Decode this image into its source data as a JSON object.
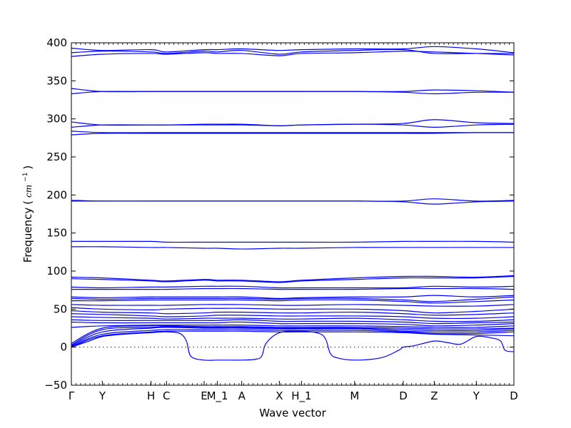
{
  "chart_data": {
    "type": "line",
    "xlabel": "Wave vector",
    "ylabel": "Frequency",
    "ylabel_unit": "cm",
    "ylabel_unit_exp": "−1",
    "ylim": [
      -50,
      400
    ],
    "yticks": [
      -50,
      0,
      50,
      100,
      150,
      200,
      250,
      300,
      350,
      400
    ],
    "ytick_labels": [
      "−50",
      "0",
      "50",
      "100",
      "150",
      "200",
      "250",
      "300",
      "350",
      "400"
    ],
    "x_range": [
      0,
      1
    ],
    "high_symmetry_points": [
      {
        "label": "Γ",
        "x": 0.0
      },
      {
        "label": "Y",
        "x": 0.07
      },
      {
        "label": "H",
        "x": 0.18
      },
      {
        "label": "C",
        "x": 0.215
      },
      {
        "label": "E",
        "x": 0.3
      },
      {
        "label": "M_1",
        "x": 0.33
      },
      {
        "label": "A",
        "x": 0.385
      },
      {
        "label": "X",
        "x": 0.47
      },
      {
        "label": "H_1",
        "x": 0.52
      },
      {
        "label": "M",
        "x": 0.64
      },
      {
        "label": "D",
        "x": 0.75
      },
      {
        "label": "Z",
        "x": 0.82
      },
      {
        "label": "Y",
        "x": 0.915
      },
      {
        "label": "D",
        "x": 1.0
      }
    ],
    "zero_reference_line": 0,
    "line_color": "#0000ff",
    "series": [
      {
        "x": [
          0,
          0.07,
          0.18,
          0.215,
          0.3,
          0.33,
          0.385,
          0.47,
          0.52,
          0.64,
          0.75,
          0.82,
          0.915,
          1
        ],
        "y": [
          387,
          389,
          388,
          386,
          389,
          388,
          390,
          385,
          388,
          390,
          391,
          386,
          386,
          386
        ]
      },
      {
        "x": [
          0,
          0.07,
          0.18,
          0.215,
          0.3,
          0.33,
          0.385,
          0.47,
          0.52,
          0.64,
          0.75,
          0.82,
          0.915,
          1
        ],
        "y": [
          393,
          390,
          391,
          388,
          391,
          391,
          392,
          390,
          391,
          392,
          392,
          395,
          392,
          387
        ]
      },
      {
        "x": [
          0,
          0.07,
          0.18,
          0.215,
          0.3,
          0.33,
          0.385,
          0.47,
          0.52,
          0.64,
          0.75,
          0.82,
          0.915,
          1
        ],
        "y": [
          382,
          385,
          386,
          385,
          387,
          386,
          386,
          383,
          386,
          387,
          389,
          388,
          386,
          384
        ]
      },
      {
        "x": [
          0,
          0.07,
          0.18,
          0.215,
          0.3,
          0.33,
          0.385,
          0.47,
          0.52,
          0.64,
          0.75,
          0.82,
          0.915,
          1
        ],
        "y": [
          340,
          336,
          336,
          336,
          336,
          336,
          336,
          336,
          336,
          336,
          336,
          338,
          337,
          335
        ]
      },
      {
        "x": [
          0,
          0.07,
          0.18,
          0.215,
          0.3,
          0.33,
          0.385,
          0.47,
          0.52,
          0.64,
          0.75,
          0.82,
          0.915,
          1
        ],
        "y": [
          333,
          336,
          336,
          336,
          336,
          336,
          336,
          336,
          336,
          336,
          335,
          333,
          335,
          335
        ]
      },
      {
        "x": [
          0,
          0.07,
          0.18,
          0.215,
          0.3,
          0.33,
          0.385,
          0.47,
          0.52,
          0.64,
          0.75,
          0.82,
          0.915,
          1
        ],
        "y": [
          296,
          292,
          292,
          292,
          293,
          293,
          293,
          291,
          292,
          293,
          294,
          299,
          295,
          294
        ]
      },
      {
        "x": [
          0,
          0.07,
          0.18,
          0.215,
          0.3,
          0.33,
          0.385,
          0.47,
          0.52,
          0.64,
          0.75,
          0.82,
          0.915,
          1
        ],
        "y": [
          289,
          292,
          292,
          292,
          292,
          292,
          292,
          291,
          292,
          293,
          292,
          289,
          292,
          293
        ]
      },
      {
        "x": [
          0,
          0.07,
          0.18,
          0.215,
          0.3,
          0.33,
          0.385,
          0.47,
          0.52,
          0.64,
          0.75,
          0.82,
          0.915,
          1
        ],
        "y": [
          284,
          282,
          282,
          282,
          282,
          282,
          282,
          282,
          282,
          282,
          282,
          282,
          282,
          282
        ]
      },
      {
        "x": [
          0,
          0.07,
          0.18,
          0.215,
          0.3,
          0.33,
          0.385,
          0.47,
          0.52,
          0.64,
          0.75,
          0.82,
          0.915,
          1
        ],
        "y": [
          279,
          281,
          281,
          281,
          281,
          281,
          281,
          281,
          281,
          281,
          281,
          281,
          282,
          282
        ]
      },
      {
        "x": [
          0,
          0.07,
          0.18,
          0.215,
          0.3,
          0.33,
          0.385,
          0.47,
          0.52,
          0.64,
          0.75,
          0.82,
          0.915,
          1
        ],
        "y": [
          193,
          192,
          192,
          192,
          192,
          192,
          192,
          192,
          192,
          192,
          192,
          195,
          192,
          193
        ]
      },
      {
        "x": [
          0,
          0.07,
          0.18,
          0.215,
          0.3,
          0.33,
          0.385,
          0.47,
          0.52,
          0.64,
          0.75,
          0.82,
          0.915,
          1
        ],
        "y": [
          192,
          192,
          192,
          192,
          192,
          192,
          192,
          192,
          192,
          192,
          191,
          188,
          191,
          192
        ]
      },
      {
        "x": [
          0,
          0.07,
          0.18,
          0.215,
          0.3,
          0.33,
          0.385,
          0.47,
          0.52,
          0.64,
          0.75,
          0.82,
          0.915,
          1
        ],
        "y": [
          139,
          139,
          139,
          138,
          138,
          138,
          138,
          138,
          138,
          138,
          139,
          139,
          139,
          138
        ]
      },
      {
        "x": [
          0,
          0.07,
          0.18,
          0.215,
          0.3,
          0.33,
          0.385,
          0.47,
          0.52,
          0.64,
          0.75,
          0.82,
          0.915,
          1
        ],
        "y": [
          132,
          132,
          131,
          131,
          130,
          130,
          129,
          130,
          130,
          131,
          131,
          131,
          131,
          131
        ]
      },
      {
        "x": [
          0,
          0.07,
          0.18,
          0.215,
          0.3,
          0.33,
          0.385,
          0.47,
          0.52,
          0.64,
          0.75,
          0.82,
          0.915,
          1
        ],
        "y": [
          92,
          91,
          88,
          87,
          89,
          88,
          88,
          86,
          88,
          91,
          93,
          93,
          92,
          94
        ]
      },
      {
        "x": [
          0,
          0.07,
          0.18,
          0.215,
          0.3,
          0.33,
          0.385,
          0.47,
          0.52,
          0.64,
          0.75,
          0.82,
          0.915,
          1
        ],
        "y": [
          90,
          89,
          87,
          86,
          88,
          87,
          87,
          85,
          87,
          89,
          91,
          91,
          91,
          93
        ]
      },
      {
        "x": [
          0,
          0.07,
          0.18,
          0.215,
          0.3,
          0.33,
          0.385,
          0.47,
          0.52,
          0.64,
          0.75,
          0.82,
          0.915,
          1
        ],
        "y": [
          79,
          78,
          79,
          79,
          80,
          80,
          80,
          78,
          78,
          78,
          78,
          80,
          79,
          80
        ]
      },
      {
        "x": [
          0,
          0.07,
          0.18,
          0.215,
          0.3,
          0.33,
          0.385,
          0.47,
          0.52,
          0.64,
          0.75,
          0.82,
          0.915,
          1
        ],
        "y": [
          76,
          76,
          76,
          76,
          77,
          77,
          77,
          76,
          76,
          76,
          77,
          77,
          77,
          76
        ]
      },
      {
        "x": [
          0,
          0.07,
          0.18,
          0.215,
          0.3,
          0.33,
          0.385,
          0.47,
          0.52,
          0.64,
          0.75,
          0.82,
          0.915,
          1
        ],
        "y": [
          66,
          65,
          66,
          66,
          66,
          66,
          66,
          64,
          65,
          66,
          66,
          68,
          66,
          68
        ]
      },
      {
        "x": [
          0,
          0.07,
          0.18,
          0.215,
          0.3,
          0.33,
          0.385,
          0.47,
          0.52,
          0.64,
          0.75,
          0.82,
          0.915,
          1
        ],
        "y": [
          64,
          63,
          64,
          64,
          64,
          64,
          64,
          63,
          64,
          64,
          62,
          60,
          63,
          66
        ]
      },
      {
        "x": [
          0,
          0.07,
          0.18,
          0.215,
          0.3,
          0.33,
          0.385,
          0.47,
          0.52,
          0.64,
          0.75,
          0.82,
          0.915,
          1
        ],
        "y": [
          61,
          61,
          62,
          62,
          62,
          62,
          62,
          61,
          62,
          62,
          60,
          58,
          60,
          62
        ]
      },
      {
        "x": [
          0,
          0.07,
          0.18,
          0.215,
          0.3,
          0.33,
          0.385,
          0.47,
          0.52,
          0.64,
          0.75,
          0.82,
          0.915,
          1
        ],
        "y": [
          56,
          55,
          55,
          55,
          56,
          56,
          56,
          55,
          55,
          56,
          55,
          54,
          54,
          56
        ]
      },
      {
        "x": [
          0,
          0.07,
          0.18,
          0.215,
          0.3,
          0.33,
          0.385,
          0.47,
          0.52,
          0.64,
          0.75,
          0.82,
          0.915,
          1
        ],
        "y": [
          52,
          50,
          49,
          50,
          51,
          51,
          51,
          50,
          50,
          50,
          48,
          45,
          47,
          50
        ]
      },
      {
        "x": [
          0,
          0.07,
          0.18,
          0.215,
          0.3,
          0.33,
          0.385,
          0.47,
          0.52,
          0.64,
          0.75,
          0.82,
          0.915,
          1
        ],
        "y": [
          48,
          46,
          45,
          44,
          45,
          46,
          46,
          45,
          45,
          46,
          44,
          42,
          43,
          45
        ]
      },
      {
        "x": [
          0,
          0.07,
          0.18,
          0.215,
          0.3,
          0.33,
          0.385,
          0.47,
          0.52,
          0.64,
          0.75,
          0.82,
          0.915,
          1
        ],
        "y": [
          44,
          43,
          41,
          40,
          41,
          42,
          42,
          41,
          41,
          41,
          40,
          38,
          38,
          40
        ]
      },
      {
        "x": [
          0,
          0.07,
          0.18,
          0.215,
          0.3,
          0.33,
          0.385,
          0.47,
          0.52,
          0.64,
          0.75,
          0.82,
          0.915,
          1
        ],
        "y": [
          40,
          39,
          38,
          37,
          38,
          38,
          38,
          37,
          37,
          38,
          36,
          34,
          34,
          36
        ]
      },
      {
        "x": [
          0,
          0.07,
          0.18,
          0.215,
          0.3,
          0.33,
          0.385,
          0.47,
          0.52,
          0.64,
          0.75,
          0.82,
          0.915,
          1
        ],
        "y": [
          36,
          35,
          35,
          35,
          35,
          35,
          36,
          34,
          34,
          34,
          33,
          31,
          32,
          33
        ]
      },
      {
        "x": [
          0,
          0.07,
          0.18,
          0.215,
          0.3,
          0.33,
          0.385,
          0.47,
          0.52,
          0.64,
          0.75,
          0.82,
          0.915,
          1
        ],
        "y": [
          33,
          32,
          32,
          32,
          32,
          32,
          33,
          31,
          31,
          31,
          30,
          28,
          29,
          31
        ]
      },
      {
        "x": [
          0,
          0.07,
          0.18,
          0.215,
          0.3,
          0.33,
          0.385,
          0.47,
          0.52,
          0.64,
          0.75,
          0.82,
          0.915,
          1
        ],
        "y": [
          26,
          28,
          29,
          29,
          29,
          29,
          29,
          28,
          28,
          28,
          27,
          26,
          26,
          28
        ]
      },
      {
        "x": [
          0,
          0.07,
          0.18,
          0.215,
          0.3,
          0.33,
          0.385,
          0.47,
          0.52,
          0.64,
          0.75,
          0.82,
          0.915,
          1
        ],
        "y": [
          5,
          25,
          28,
          28,
          27,
          27,
          27,
          26,
          26,
          26,
          25,
          24,
          24,
          25
        ]
      },
      {
        "x": [
          0,
          0.07,
          0.18,
          0.215,
          0.3,
          0.33,
          0.385,
          0.47,
          0.52,
          0.64,
          0.75,
          0.82,
          0.915,
          1
        ],
        "y": [
          3,
          23,
          26,
          27,
          26,
          26,
          26,
          25,
          25,
          25,
          23,
          22,
          22,
          24
        ]
      },
      {
        "x": [
          0,
          0.07,
          0.18,
          0.215,
          0.3,
          0.33,
          0.385,
          0.47,
          0.52,
          0.64,
          0.75,
          0.82,
          0.915,
          1
        ],
        "y": [
          2,
          20,
          25,
          26,
          25,
          25,
          25,
          24,
          24,
          24,
          21,
          20,
          20,
          22
        ]
      },
      {
        "x": [
          0,
          0.07,
          0.18,
          0.215,
          0.3,
          0.33,
          0.385,
          0.47,
          0.52,
          0.64,
          0.75,
          0.82,
          0.915,
          1
        ],
        "y": [
          1,
          17,
          22,
          23,
          23,
          23,
          23,
          22,
          22,
          22,
          20,
          18,
          18,
          20
        ]
      },
      {
        "x": [
          0,
          0.07,
          0.18,
          0.215,
          0.3,
          0.33,
          0.385,
          0.47,
          0.52,
          0.64,
          0.75,
          0.82,
          0.915,
          1
        ],
        "y": [
          0,
          15,
          20,
          21,
          21,
          21,
          21,
          20,
          20,
          20,
          19,
          17,
          16,
          15
        ]
      },
      {
        "x": [
          0,
          0.04,
          0.07,
          0.12,
          0.18,
          0.215,
          0.245,
          0.26,
          0.27,
          0.3,
          0.33,
          0.36,
          0.385,
          0.415,
          0.43,
          0.44,
          0.47,
          0.52,
          0.56,
          0.575,
          0.585,
          0.6,
          0.64,
          0.7,
          0.74,
          0.75,
          0.775,
          0.82,
          0.85,
          0.88,
          0.915,
          0.95,
          0.97,
          0.98,
          1
        ],
        "y": [
          0,
          8,
          14,
          17,
          19,
          20,
          18,
          8,
          -12,
          -17,
          -17,
          -17,
          -17,
          -16,
          -12,
          5,
          19,
          21,
          18,
          10,
          -8,
          -14,
          -17,
          -14,
          -4,
          0,
          2,
          8,
          6,
          4,
          14,
          12,
          8,
          -4,
          -6
        ]
      }
    ]
  }
}
